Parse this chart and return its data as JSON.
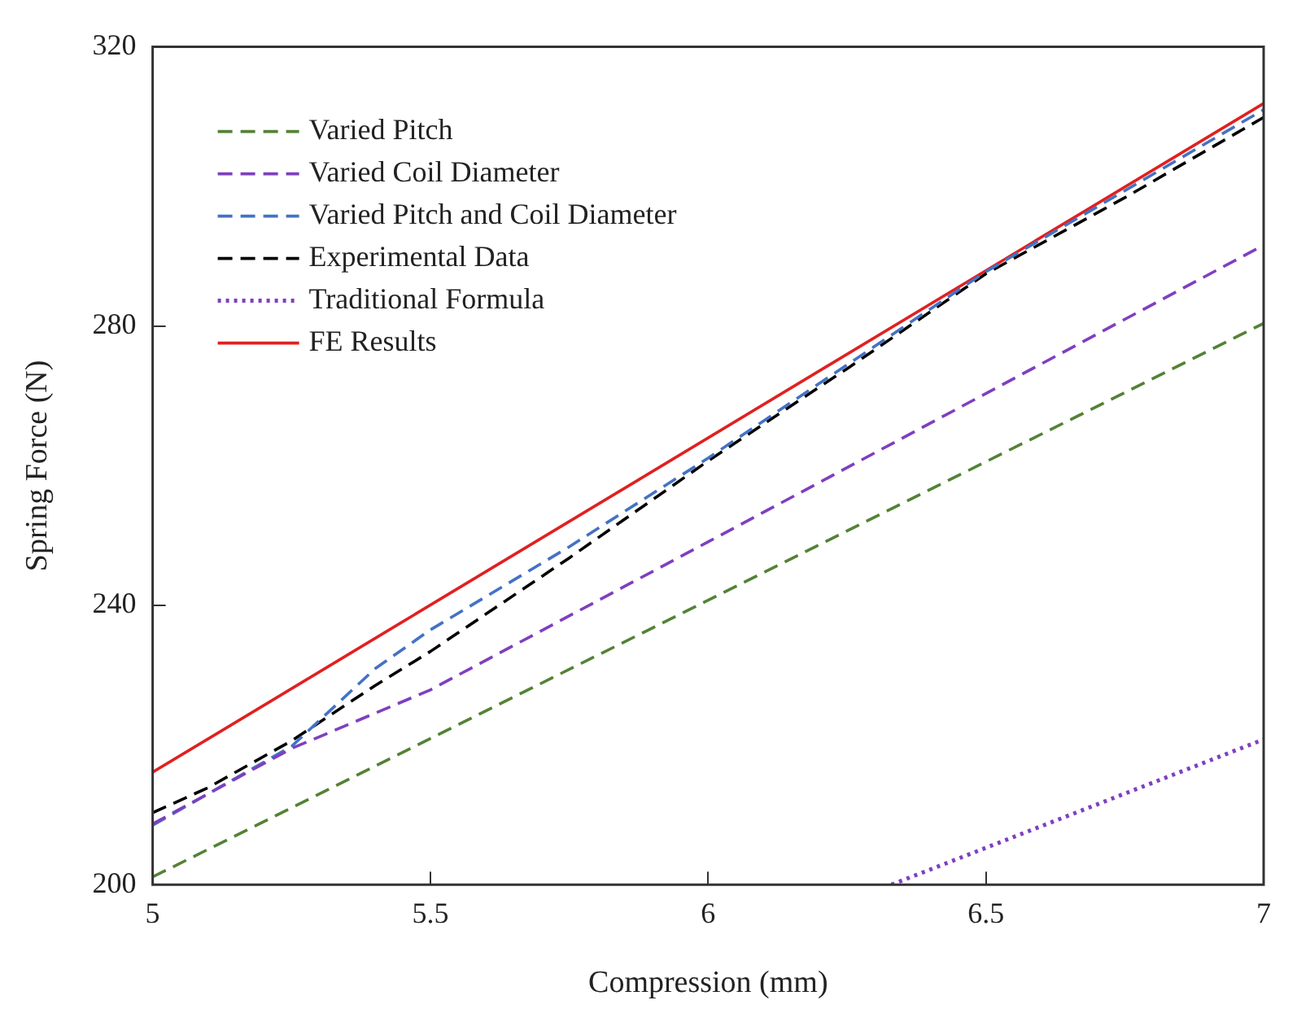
{
  "chart_data": {
    "type": "line",
    "xlabel": "Compression (mm)",
    "ylabel": "Spring Force (N)",
    "xlim": [
      5,
      7
    ],
    "xticks": [
      5,
      5.5,
      6,
      6.5,
      7
    ],
    "ylim": [
      200,
      320
    ],
    "yticks": [
      200,
      240,
      280,
      320
    ],
    "grid": false,
    "legend": "top left",
    "marker": "none",
    "series": [
      {
        "name": "Varied Pitch",
        "color": "#548235",
        "line_style": "dashed",
        "x": [
          5,
          7
        ],
        "values": [
          201.1,
          280.4
        ]
      },
      {
        "name": "Varied Coil Diameter",
        "color": "#7f3fbf",
        "line_style": "dashed",
        "x": [
          5,
          5.25,
          5.5,
          6,
          7
        ],
        "values": [
          208.7,
          219.5,
          227.9,
          249.1,
          291.6
        ]
      },
      {
        "name": "Varied Pitch and Coil Diameter",
        "color": "#4472c4",
        "line_style": "dashed",
        "x": [
          5,
          5.25,
          5.4,
          5.5,
          5.75,
          6,
          6.5,
          7
        ],
        "values": [
          208.5,
          219.8,
          230.9,
          236.5,
          248.4,
          261.1,
          287.8,
          311
        ]
      },
      {
        "name": "Experimental Data",
        "color": "#000000",
        "line_style": "dashed",
        "x": [
          5,
          5.1,
          5.25,
          5.4,
          5.5,
          5.75,
          6,
          6.25,
          6.5,
          6.75,
          7
        ],
        "values": [
          210.3,
          213.9,
          220.6,
          228.5,
          233.4,
          246.8,
          260.7,
          273.9,
          287.5,
          298.4,
          309.9
        ]
      },
      {
        "name": "Traditional Formula",
        "color": "#7f3fbf",
        "line_style": "dotted",
        "x": [
          6.33,
          7
        ],
        "values": [
          200,
          220.8
        ]
      },
      {
        "name": "FE Results",
        "color": "#e02020",
        "line_style": "solid",
        "x": [
          5,
          7
        ],
        "values": [
          216.1,
          311.9
        ]
      }
    ]
  }
}
